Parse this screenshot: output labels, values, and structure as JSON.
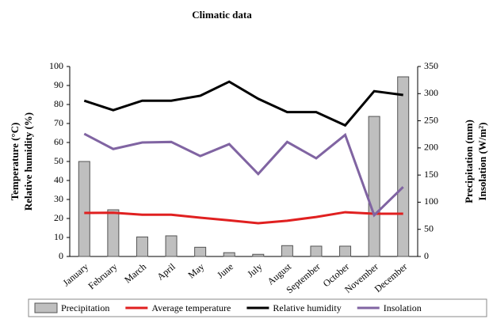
{
  "chart_data": {
    "type": "combo",
    "title": "Climatic data",
    "ylabel": [
      "Temperature (°C)",
      "Relative humidity  (%)"
    ],
    "y2label": [
      "Precipitation (mm)",
      "Insolation (W/m²)"
    ],
    "categories": [
      "January",
      "February",
      "March",
      "April",
      "May",
      "June",
      "July",
      "August",
      "September",
      "October",
      "November",
      "December"
    ],
    "ylim": [
      0,
      100
    ],
    "yticks": [
      0,
      10,
      20,
      30,
      40,
      50,
      60,
      70,
      80,
      90,
      100
    ],
    "y2lim": [
      0,
      350
    ],
    "y2ticks": [
      0,
      50,
      100,
      150,
      200,
      250,
      300,
      350
    ],
    "legend": "bottom",
    "series": [
      {
        "name": "Precipitation",
        "type": "bar",
        "axis": "y2",
        "color": "#bfbfbf",
        "values": [
          175,
          86,
          36,
          38,
          17,
          7,
          4,
          20,
          19,
          19,
          258,
          331
        ]
      },
      {
        "name": "Average temperature",
        "type": "line",
        "color": "#e02020",
        "values": [
          22.9,
          23,
          22,
          22,
          20.4,
          19,
          17.5,
          18.8,
          20.8,
          23.3,
          22.5,
          22.5
        ]
      },
      {
        "name": "Relative humidity",
        "type": "line",
        "color": "#000000",
        "values": [
          82,
          77,
          82,
          82,
          84.6,
          92,
          83,
          76,
          76,
          69,
          87,
          85
        ]
      },
      {
        "name": "Insolation",
        "type": "line",
        "axis": "y2",
        "color": "#8064a2",
        "values": [
          226,
          198,
          210,
          211,
          185,
          207,
          152,
          211,
          181,
          224,
          76,
          128
        ]
      }
    ]
  }
}
